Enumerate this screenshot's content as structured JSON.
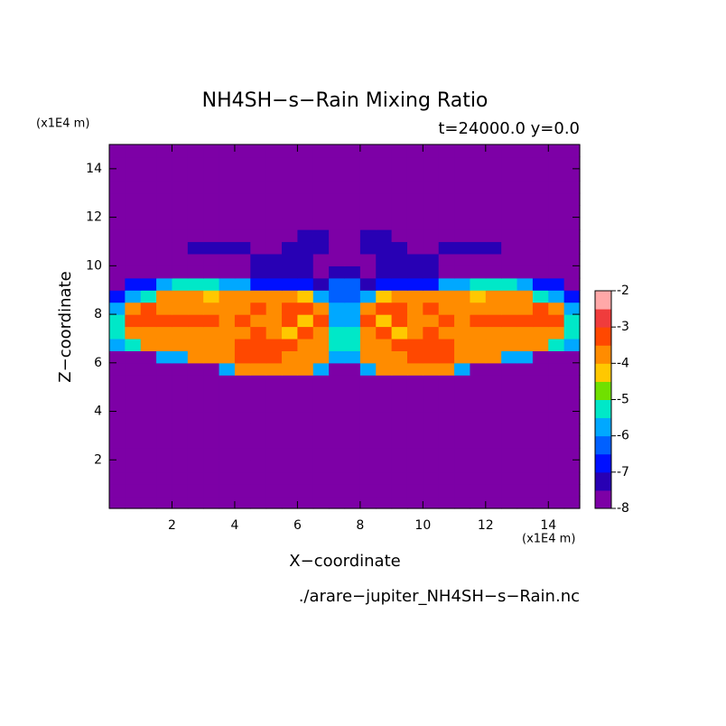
{
  "chart_data": {
    "type": "contour",
    "title": "NH4SH−s−Rain Mixing Ratio",
    "subtitle": "t=24000.0 y=0.0",
    "y_unit": "(x1E4 m)",
    "x_unit": "(x1E4 m)",
    "x_label": "X−coordinate",
    "y_label": "Z−coordinate",
    "footer": "./arare−jupiter_NH4SH−s−Rain.nc",
    "xlim": [
      0,
      15
    ],
    "ylim": [
      0,
      15
    ],
    "xticks": [
      2,
      4,
      6,
      8,
      10,
      12,
      14
    ],
    "yticks": [
      2,
      4,
      6,
      8,
      10,
      12,
      14
    ],
    "levels": [
      -8,
      -7.5,
      -7,
      -6.5,
      -6,
      -5.5,
      -5,
      -4.5,
      -4,
      -3.5,
      -3,
      -2.5,
      -2
    ],
    "colors": [
      "#7d00a6",
      "#2800b4",
      "#0010ff",
      "#0060ff",
      "#00a8ff",
      "#00e8c8",
      "#70e000",
      "#ffc800",
      "#ff8c00",
      "#ff4800",
      "#f03c3c",
      "#ffa8a8"
    ],
    "cticks": [
      -8,
      -7,
      -6,
      -5,
      -4,
      -3,
      -2
    ],
    "x": [
      0.25,
      0.75,
      1.25,
      1.75,
      2.25,
      2.75,
      3.25,
      3.75,
      4.25,
      4.75,
      5.25,
      5.75,
      6.25,
      6.75,
      7.25,
      7.75,
      8.25,
      8.75,
      9.25,
      9.75,
      10.25,
      10.75,
      11.25,
      11.75,
      12.25,
      12.75,
      13.25,
      13.75,
      14.25,
      14.75
    ],
    "y": [
      0.25,
      0.75,
      1.25,
      1.75,
      2.25,
      2.75,
      3.25,
      3.75,
      4.25,
      4.75,
      5.25,
      5.75,
      6.25,
      6.75,
      7.25,
      7.75,
      8.25,
      8.75,
      9.25,
      9.75,
      10.25,
      10.75,
      11.25,
      11.75,
      12.25,
      12.75,
      13.25,
      13.75,
      14.25,
      14.75
    ],
    "z": [
      [
        -8,
        -8,
        -8,
        -8,
        -8,
        -8,
        -8,
        -8,
        -8,
        -8,
        -8,
        -8,
        -8,
        -8,
        -8,
        -8,
        -8,
        -8,
        -8,
        -8,
        -8,
        -8,
        -8,
        -8,
        -8,
        -8,
        -8,
        -8,
        -8,
        -8
      ],
      [
        -8,
        -8,
        -8,
        -8,
        -8,
        -8,
        -8,
        -8,
        -8,
        -8,
        -8,
        -8,
        -8,
        -8,
        -8,
        -8,
        -8,
        -8,
        -8,
        -8,
        -8,
        -8,
        -8,
        -8,
        -8,
        -8,
        -8,
        -8,
        -8,
        -8
      ],
      [
        -8,
        -8,
        -8,
        -8,
        -8,
        -8,
        -8,
        -8,
        -8,
        -8,
        -8,
        -8,
        -8,
        -8,
        -8,
        -8,
        -8,
        -8,
        -8,
        -8,
        -8,
        -8,
        -8,
        -8,
        -8,
        -8,
        -8,
        -8,
        -8,
        -8
      ],
      [
        -8,
        -8,
        -8,
        -8,
        -8,
        -8,
        -8,
        -8,
        -8,
        -8,
        -8,
        -8,
        -8,
        -8,
        -8,
        -8,
        -8,
        -8,
        -8,
        -8,
        -8,
        -8,
        -8,
        -8,
        -8,
        -8,
        -8,
        -8,
        -8,
        -8
      ],
      [
        -8,
        -8,
        -8,
        -8,
        -8,
        -8,
        -8,
        -8,
        -8,
        -8,
        -8,
        -8,
        -8,
        -8,
        -8,
        -8,
        -8,
        -8,
        -8,
        -8,
        -8,
        -8,
        -8,
        -8,
        -8,
        -8,
        -8,
        -8,
        -8,
        -8
      ],
      [
        -8,
        -8,
        -8,
        -8,
        -8,
        -8,
        -8,
        -8,
        -8,
        -8,
        -8,
        -8,
        -8,
        -8,
        -8,
        -8,
        -8,
        -8,
        -8,
        -8,
        -8,
        -8,
        -8,
        -8,
        -8,
        -8,
        -8,
        -8,
        -8,
        -8
      ],
      [
        -8,
        -8,
        -8,
        -8,
        -8,
        -8,
        -8,
        -8,
        -8,
        -8,
        -8,
        -8,
        -8,
        -8,
        -8,
        -8,
        -8,
        -8,
        -8,
        -8,
        -8,
        -8,
        -8,
        -8,
        -8,
        -8,
        -8,
        -8,
        -8,
        -8
      ],
      [
        -8,
        -8,
        -8,
        -8,
        -8,
        -8,
        -8,
        -8,
        -8,
        -8,
        -8,
        -8,
        -8,
        -8,
        -8,
        -8,
        -8,
        -8,
        -8,
        -8,
        -8,
        -8,
        -8,
        -8,
        -8,
        -8,
        -8,
        -8,
        -8,
        -8
      ],
      [
        -8,
        -8,
        -8,
        -8,
        -8,
        -8,
        -8,
        -8,
        -8,
        -8,
        -8,
        -8,
        -8,
        -8,
        -8,
        -8,
        -8,
        -8,
        -8,
        -8,
        -8,
        -8,
        -8,
        -8,
        -8,
        -8,
        -8,
        -8,
        -8,
        -8
      ],
      [
        -8,
        -8,
        -8,
        -8,
        -8,
        -8,
        -8,
        -8,
        -8,
        -8,
        -8,
        -8,
        -8,
        -8,
        -8,
        -8,
        -8,
        -8,
        -8,
        -8,
        -8,
        -8,
        -8,
        -8,
        -8,
        -8,
        -8,
        -8,
        -8,
        -8
      ],
      [
        -8,
        -8,
        -8,
        -8,
        -8,
        -8,
        -8,
        -8,
        -8,
        -8,
        -8,
        -8,
        -8,
        -8,
        -8,
        -8,
        -8,
        -8,
        -8,
        -8,
        -8,
        -8,
        -8,
        -8,
        -8,
        -8,
        -8,
        -8,
        -8,
        -8
      ],
      [
        -8,
        -8,
        -8,
        -8,
        -8,
        -8,
        -8,
        -5.8,
        -3.8,
        -3.8,
        -3.8,
        -3.8,
        -3.8,
        -5.8,
        -8,
        -8,
        -5.8,
        -3.8,
        -3.8,
        -3.8,
        -3.8,
        -3.8,
        -5.8,
        -8,
        -8,
        -8,
        -8,
        -8,
        -8,
        -8
      ],
      [
        -8,
        -8,
        -8,
        -5.8,
        -5.8,
        -3.8,
        -3.8,
        -3.8,
        -3.2,
        -3.2,
        -3.2,
        -3.8,
        -3.8,
        -3.8,
        -5.8,
        -5.8,
        -3.8,
        -3.8,
        -3.8,
        -3.2,
        -3.2,
        -3.2,
        -3.8,
        -3.8,
        -3.8,
        -5.8,
        -5.8,
        -8,
        -8,
        -8
      ],
      [
        -5.8,
        -5.2,
        -3.8,
        -3.8,
        -3.8,
        -3.8,
        -3.8,
        -3.8,
        -3.2,
        -3.2,
        -3.2,
        -3.2,
        -3.8,
        -3.8,
        -5.2,
        -5.2,
        -3.8,
        -3.8,
        -3.2,
        -3.2,
        -3.2,
        -3.2,
        -3.8,
        -3.8,
        -3.8,
        -3.8,
        -3.8,
        -3.8,
        -5.2,
        -5.8
      ],
      [
        -5.2,
        -3.8,
        -3.8,
        -3.8,
        -3.8,
        -3.8,
        -3.8,
        -3.8,
        -3.8,
        -3.2,
        -3.8,
        -4.2,
        -3.2,
        -3.8,
        -5.2,
        -5.2,
        -3.8,
        -3.2,
        -4.2,
        -3.8,
        -3.2,
        -3.8,
        -3.8,
        -3.8,
        -3.8,
        -3.8,
        -3.8,
        -3.8,
        -3.8,
        -5.2
      ],
      [
        -5.2,
        -3.2,
        -3.2,
        -3.2,
        -3.2,
        -3.2,
        -3.2,
        -3.8,
        -3.2,
        -3.8,
        -3.8,
        -3.2,
        -4.2,
        -3.2,
        -5.8,
        -5.8,
        -3.2,
        -4.2,
        -3.2,
        -3.8,
        -3.8,
        -3.2,
        -3.8,
        -3.2,
        -3.2,
        -3.2,
        -3.2,
        -3.2,
        -3.2,
        -5.2
      ],
      [
        -5.8,
        -3.8,
        -3.2,
        -3.8,
        -3.8,
        -3.8,
        -3.8,
        -3.8,
        -3.8,
        -3.2,
        -3.8,
        -3.2,
        -3.2,
        -3.8,
        -5.8,
        -5.8,
        -3.8,
        -3.2,
        -3.2,
        -3.8,
        -3.2,
        -3.8,
        -3.8,
        -3.8,
        -3.8,
        -3.8,
        -3.8,
        -3.2,
        -3.8,
        -5.8
      ],
      [
        -6.8,
        -5.8,
        -5.2,
        -3.8,
        -3.8,
        -3.8,
        -4.2,
        -3.8,
        -3.8,
        -3.8,
        -3.8,
        -3.8,
        -4.2,
        -5.8,
        -6.2,
        -6.2,
        -5.8,
        -4.2,
        -3.8,
        -3.8,
        -3.8,
        -3.8,
        -3.8,
        -4.2,
        -3.8,
        -3.8,
        -3.8,
        -5.2,
        -5.8,
        -6.8
      ],
      [
        -8,
        -6.8,
        -6.8,
        -5.8,
        -5.2,
        -5.2,
        -5.2,
        -5.8,
        -5.8,
        -6.8,
        -6.8,
        -6.8,
        -6.8,
        -7.2,
        -6.2,
        -6.2,
        -7.2,
        -6.8,
        -6.8,
        -6.8,
        -6.8,
        -5.8,
        -5.8,
        -5.2,
        -5.2,
        -5.2,
        -5.8,
        -6.8,
        -6.8,
        -8
      ],
      [
        -8,
        -8,
        -8,
        -8,
        -8,
        -8,
        -8,
        -8,
        -8,
        -7.2,
        -7.2,
        -7.2,
        -7.2,
        -8,
        -7.2,
        -7.2,
        -8,
        -7.2,
        -7.2,
        -7.2,
        -7.2,
        -8,
        -8,
        -8,
        -8,
        -8,
        -8,
        -8,
        -8,
        -8
      ],
      [
        -8,
        -8,
        -8,
        -8,
        -8,
        -8,
        -8,
        -8,
        -8,
        -7.2,
        -7.2,
        -7.2,
        -7.2,
        -8,
        -8,
        -8,
        -8,
        -7.2,
        -7.2,
        -7.2,
        -7.2,
        -8,
        -8,
        -8,
        -8,
        -8,
        -8,
        -8,
        -8,
        -8
      ],
      [
        -8,
        -8,
        -8,
        -8,
        -8,
        -7.2,
        -7.2,
        -7.2,
        -7.2,
        -8,
        -8,
        -7.2,
        -7.2,
        -7.2,
        -8,
        -8,
        -7.2,
        -7.2,
        -7.2,
        -8,
        -8,
        -7.2,
        -7.2,
        -7.2,
        -7.2,
        -8,
        -8,
        -8,
        -8,
        -8
      ],
      [
        -8,
        -8,
        -8,
        -8,
        -8,
        -8,
        -8,
        -8,
        -8,
        -8,
        -8,
        -8,
        -7.2,
        -7.2,
        -8,
        -8,
        -7.2,
        -7.2,
        -8,
        -8,
        -8,
        -8,
        -8,
        -8,
        -8,
        -8,
        -8,
        -8,
        -8,
        -8
      ],
      [
        -8,
        -8,
        -8,
        -8,
        -8,
        -8,
        -8,
        -8,
        -8,
        -8,
        -8,
        -8,
        -8,
        -8,
        -8,
        -8,
        -8,
        -8,
        -8,
        -8,
        -8,
        -8,
        -8,
        -8,
        -8,
        -8,
        -8,
        -8,
        -8,
        -8
      ],
      [
        -8,
        -8,
        -8,
        -8,
        -8,
        -8,
        -8,
        -8,
        -8,
        -8,
        -8,
        -8,
        -8,
        -8,
        -8,
        -8,
        -8,
        -8,
        -8,
        -8,
        -8,
        -8,
        -8,
        -8,
        -8,
        -8,
        -8,
        -8,
        -8,
        -8
      ],
      [
        -8,
        -8,
        -8,
        -8,
        -8,
        -8,
        -8,
        -8,
        -8,
        -8,
        -8,
        -8,
        -8,
        -8,
        -8,
        -8,
        -8,
        -8,
        -8,
        -8,
        -8,
        -8,
        -8,
        -8,
        -8,
        -8,
        -8,
        -8,
        -8,
        -8
      ],
      [
        -8,
        -8,
        -8,
        -8,
        -8,
        -8,
        -8,
        -8,
        -8,
        -8,
        -8,
        -8,
        -8,
        -8,
        -8,
        -8,
        -8,
        -8,
        -8,
        -8,
        -8,
        -8,
        -8,
        -8,
        -8,
        -8,
        -8,
        -8,
        -8,
        -8
      ],
      [
        -8,
        -8,
        -8,
        -8,
        -8,
        -8,
        -8,
        -8,
        -8,
        -8,
        -8,
        -8,
        -8,
        -8,
        -8,
        -8,
        -8,
        -8,
        -8,
        -8,
        -8,
        -8,
        -8,
        -8,
        -8,
        -8,
        -8,
        -8,
        -8,
        -8
      ],
      [
        -8,
        -8,
        -8,
        -8,
        -8,
        -8,
        -8,
        -8,
        -8,
        -8,
        -8,
        -8,
        -8,
        -8,
        -8,
        -8,
        -8,
        -8,
        -8,
        -8,
        -8,
        -8,
        -8,
        -8,
        -8,
        -8,
        -8,
        -8,
        -8,
        -8
      ],
      [
        -8,
        -8,
        -8,
        -8,
        -8,
        -8,
        -8,
        -8,
        -8,
        -8,
        -8,
        -8,
        -8,
        -8,
        -8,
        -8,
        -8,
        -8,
        -8,
        -8,
        -8,
        -8,
        -8,
        -8,
        -8,
        -8,
        -8,
        -8,
        -8,
        -8
      ]
    ]
  }
}
